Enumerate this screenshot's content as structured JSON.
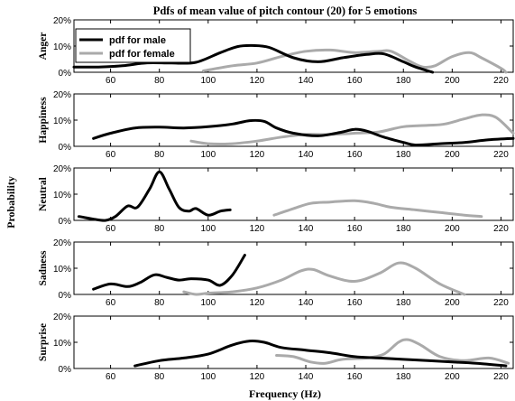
{
  "chart_data": {
    "type": "line",
    "title": "Pdfs of mean value of pitch contour (20) for 5 emotions",
    "xlabel": "Frequency (Hz)",
    "ylabel": "Probability",
    "xlim": [
      45,
      225
    ],
    "ylim": [
      0,
      20
    ],
    "x_ticks": [
      60,
      80,
      100,
      120,
      140,
      160,
      180,
      200,
      220
    ],
    "y_ticks": [
      "0%",
      "10%",
      "20%"
    ],
    "legend": {
      "placement": "top-left",
      "entries": [
        {
          "label": "pdf for male",
          "color": "#000000"
        },
        {
          "label": "pdf for female",
          "color": "#aaaaaa"
        }
      ]
    },
    "panels": [
      {
        "emotion": "Anger",
        "series": [
          {
            "name": "pdf for male",
            "color": "#000000",
            "points": [
              [
                45,
                2
              ],
              [
                55,
                2
              ],
              [
                65,
                2.5
              ],
              [
                75,
                3.6
              ],
              [
                85,
                3.5
              ],
              [
                95,
                3.8
              ],
              [
                105,
                7.5
              ],
              [
                112,
                9.8
              ],
              [
                118,
                10.2
              ],
              [
                125,
                9.5
              ],
              [
                135,
                5.5
              ],
              [
                145,
                4
              ],
              [
                155,
                5.5
              ],
              [
                165,
                6.8
              ],
              [
                172,
                7
              ],
              [
                180,
                4
              ],
              [
                185,
                2
              ],
              [
                192,
                0
              ]
            ]
          },
          {
            "name": "pdf for female",
            "color": "#aaaaaa",
            "points": [
              [
                98,
                0.5
              ],
              [
                110,
                2.5
              ],
              [
                120,
                3.5
              ],
              [
                130,
                6
              ],
              [
                140,
                8
              ],
              [
                150,
                8.5
              ],
              [
                160,
                7.5
              ],
              [
                170,
                8
              ],
              [
                175,
                8
              ],
              [
                183,
                4
              ],
              [
                188,
                2
              ],
              [
                193,
                2.5
              ],
              [
                200,
                6
              ],
              [
                207,
                7.5
              ],
              [
                212,
                5.5
              ],
              [
                220,
                1.5
              ],
              [
                222,
                0
              ]
            ]
          }
        ]
      },
      {
        "emotion": "Happiness",
        "series": [
          {
            "name": "pdf for male",
            "color": "#000000",
            "points": [
              [
                53,
                3
              ],
              [
                60,
                5
              ],
              [
                70,
                7
              ],
              [
                80,
                7.3
              ],
              [
                90,
                7
              ],
              [
                100,
                7.5
              ],
              [
                110,
                8.5
              ],
              [
                117,
                9.8
              ],
              [
                123,
                9.5
              ],
              [
                128,
                7
              ],
              [
                135,
                5
              ],
              [
                145,
                4
              ],
              [
                155,
                5.5
              ],
              [
                160,
                6.5
              ],
              [
                165,
                5.8
              ],
              [
                172,
                3.5
              ],
              [
                180,
                1.5
              ],
              [
                185,
                0.5
              ],
              [
                195,
                1
              ],
              [
                205,
                1.5
              ],
              [
                215,
                2.5
              ],
              [
                225,
                3
              ]
            ]
          },
          {
            "name": "pdf for female",
            "color": "#aaaaaa",
            "points": [
              [
                93,
                2
              ],
              [
                100,
                1
              ],
              [
                110,
                1
              ],
              [
                120,
                2
              ],
              [
                130,
                3.5
              ],
              [
                140,
                4.5
              ],
              [
                150,
                4.5
              ],
              [
                160,
                5
              ],
              [
                170,
                5.5
              ],
              [
                180,
                7.5
              ],
              [
                190,
                8
              ],
              [
                197,
                8.5
              ],
              [
                205,
                10.5
              ],
              [
                212,
                12
              ],
              [
                218,
                11
              ],
              [
                225,
                5
              ]
            ]
          }
        ]
      },
      {
        "emotion": "Neutral",
        "series": [
          {
            "name": "pdf for male",
            "color": "#000000",
            "points": [
              [
                47,
                1.5
              ],
              [
                53,
                0.5
              ],
              [
                58,
                0
              ],
              [
                62,
                1.5
              ],
              [
                67,
                5.5
              ],
              [
                71,
                5
              ],
              [
                76,
                12
              ],
              [
                80,
                18.5
              ],
              [
                84,
                12
              ],
              [
                88,
                5
              ],
              [
                92,
                3.5
              ],
              [
                95,
                4.5
              ],
              [
                100,
                2
              ],
              [
                105,
                3.5
              ],
              [
                109,
                4
              ]
            ]
          },
          {
            "name": "pdf for female",
            "color": "#aaaaaa",
            "points": [
              [
                127,
                2
              ],
              [
                135,
                4.5
              ],
              [
                142,
                6.5
              ],
              [
                150,
                7
              ],
              [
                160,
                7.5
              ],
              [
                168,
                6.5
              ],
              [
                175,
                5
              ],
              [
                185,
                4
              ],
              [
                195,
                3
              ],
              [
                205,
                2
              ],
              [
                212,
                1.5
              ]
            ]
          }
        ]
      },
      {
        "emotion": "Sadness",
        "series": [
          {
            "name": "pdf for male",
            "color": "#000000",
            "points": [
              [
                53,
                2
              ],
              [
                60,
                4
              ],
              [
                67,
                3
              ],
              [
                72,
                4.5
              ],
              [
                78,
                7.5
              ],
              [
                83,
                6.5
              ],
              [
                88,
                5.5
              ],
              [
                93,
                6
              ],
              [
                100,
                5.5
              ],
              [
                105,
                3.5
              ],
              [
                110,
                7.5
              ],
              [
                115,
                15
              ]
            ]
          },
          {
            "name": "pdf for female",
            "color": "#aaaaaa",
            "points": [
              [
                90,
                1
              ],
              [
                95,
                0
              ],
              [
                100,
                0.5
              ],
              [
                110,
                1
              ],
              [
                120,
                2.5
              ],
              [
                130,
                5.5
              ],
              [
                138,
                9
              ],
              [
                143,
                9.5
              ],
              [
                150,
                7
              ],
              [
                160,
                5
              ],
              [
                170,
                8
              ],
              [
                178,
                12
              ],
              [
                185,
                10
              ],
              [
                195,
                4
              ],
              [
                205,
                0
              ]
            ]
          }
        ]
      },
      {
        "emotion": "Surprise",
        "series": [
          {
            "name": "pdf for male",
            "color": "#000000",
            "points": [
              [
                70,
                1
              ],
              [
                80,
                3
              ],
              [
                90,
                4
              ],
              [
                100,
                5.5
              ],
              [
                110,
                9
              ],
              [
                117,
                10.5
              ],
              [
                123,
                10
              ],
              [
                130,
                8
              ],
              [
                140,
                7
              ],
              [
                150,
                6
              ],
              [
                160,
                4.5
              ],
              [
                170,
                4
              ],
              [
                180,
                3.5
              ],
              [
                190,
                3
              ],
              [
                200,
                2.5
              ],
              [
                210,
                2
              ],
              [
                222,
                1
              ]
            ]
          },
          {
            "name": "pdf for female",
            "color": "#aaaaaa",
            "points": [
              [
                128,
                5
              ],
              [
                135,
                4.5
              ],
              [
                142,
                2.5
              ],
              [
                148,
                2
              ],
              [
                155,
                3.5
              ],
              [
                165,
                4
              ],
              [
                172,
                5.5
              ],
              [
                178,
                10
              ],
              [
                182,
                11
              ],
              [
                187,
                9
              ],
              [
                195,
                4.5
              ],
              [
                205,
                3
              ],
              [
                215,
                4
              ],
              [
                223,
                2
              ]
            ]
          }
        ]
      }
    ]
  }
}
